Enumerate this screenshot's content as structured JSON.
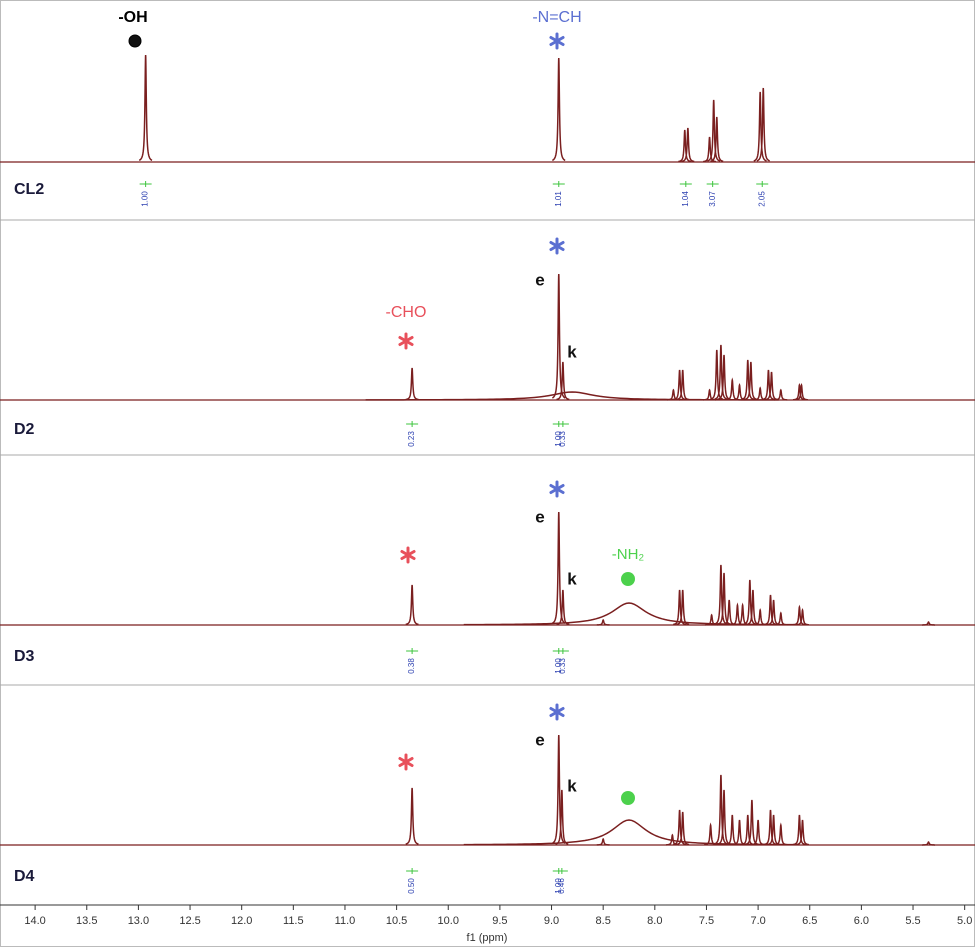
{
  "chart_data": {
    "type": "nmr",
    "x_label": "f1 (ppm)",
    "xlim": [
      14.34,
      4.9
    ],
    "xticks": [
      {
        "value": 14,
        "label": "14.0"
      },
      {
        "value": 13.5,
        "label": "13.5"
      },
      {
        "value": 13,
        "label": "13.0"
      },
      {
        "value": 12.5,
        "label": "12.5"
      },
      {
        "value": 12,
        "label": "12.0"
      },
      {
        "value": 11.5,
        "label": "11.5"
      },
      {
        "value": 11,
        "label": "11.0"
      },
      {
        "value": 10.5,
        "label": "10.5"
      },
      {
        "value": 10,
        "label": "10.0"
      },
      9.5,
      {
        "value": 9,
        "label": "9.0"
      },
      8.5,
      {
        "value": 8,
        "label": "8.0"
      },
      7.5,
      {
        "value": 7,
        "label": "7.0"
      },
      6.5,
      {
        "value": 6,
        "label": "6.0"
      },
      5.5,
      {
        "value": 5,
        "label": "5.0"
      }
    ],
    "ylim": [
      0,
      130
    ],
    "line_color": "#7a1f1f",
    "series": [
      {
        "name": "CL2",
        "x": [
          12.93,
          8.93,
          7.71,
          7.68,
          7.47,
          7.43,
          7.4,
          6.98,
          6.95
        ],
        "values": [
          107,
          104,
          32,
          34,
          25,
          62,
          45,
          70,
          74
        ],
        "widths": [
          0.006,
          0.006,
          0.006,
          0.006,
          0.006,
          0.006,
          0.006,
          0.006,
          0.006
        ],
        "integrals": {
          "x": [
            12.93,
            8.93,
            7.7,
            7.44,
            6.96
          ],
          "values": [
            1,
            1.01,
            1.04,
            3.07,
            2.05
          ],
          "value_labels": [
            "1.00",
            "1.01",
            "1.04",
            "3.07",
            "2.05"
          ]
        },
        "annotations": [
          "-OH",
          "-N=CH"
        ]
      },
      {
        "name": "D2",
        "x": [
          10.35,
          8.93,
          8.89,
          8.8,
          7.82,
          7.76,
          7.73,
          7.47,
          7.4,
          7.36,
          7.33,
          7.25,
          7.18,
          7.1,
          7.07,
          6.98,
          6.9,
          6.87,
          6.78,
          6.6,
          6.58
        ],
        "values": [
          32,
          126,
          38,
          8,
          10,
          30,
          30,
          10,
          50,
          55,
          45,
          20,
          15,
          40,
          38,
          12,
          30,
          28,
          10,
          15,
          15
        ],
        "widths": [
          0.006,
          0.006,
          0.006,
          0.25,
          0.006,
          0.006,
          0.006,
          0.006,
          0.006,
          0.006,
          0.006,
          0.006,
          0.006,
          0.006,
          0.006,
          0.006,
          0.006,
          0.006,
          0.006,
          0.006,
          0.006
        ],
        "integrals": {
          "x": [
            10.35,
            8.93,
            8.89
          ],
          "values": [
            0.23,
            1,
            0.33
          ],
          "value_labels": [
            "0.23",
            "1.00",
            "0.33"
          ]
        },
        "annotations": [
          "-CHO",
          "e",
          "k"
        ]
      },
      {
        "name": "D3",
        "x": [
          10.35,
          8.93,
          8.89,
          8.5,
          8.25,
          7.76,
          7.73,
          7.45,
          7.36,
          7.33,
          7.28,
          7.2,
          7.15,
          7.08,
          7.05,
          6.98,
          6.88,
          6.85,
          6.78,
          6.6,
          6.57,
          5.35
        ],
        "values": [
          40,
          113,
          35,
          5,
          22,
          35,
          35,
          10,
          60,
          52,
          25,
          20,
          20,
          45,
          35,
          15,
          30,
          25,
          12,
          18,
          15,
          3
        ],
        "widths": [
          0.006,
          0.006,
          0.006,
          0.006,
          0.2,
          0.006,
          0.006,
          0.006,
          0.006,
          0.006,
          0.006,
          0.006,
          0.006,
          0.006,
          0.006,
          0.006,
          0.006,
          0.006,
          0.006,
          0.006,
          0.006,
          0.006
        ],
        "integrals": {
          "x": [
            10.35,
            8.93,
            8.89
          ],
          "values": [
            0.38,
            1,
            0.33
          ],
          "value_labels": [
            "0.38",
            "1.00",
            "0.33"
          ]
        },
        "annotations": [
          "e",
          "k",
          "-NH₂"
        ]
      },
      {
        "name": "D4",
        "x": [
          10.35,
          8.93,
          8.9,
          8.5,
          8.25,
          7.83,
          7.76,
          7.73,
          7.46,
          7.36,
          7.33,
          7.25,
          7.18,
          7.1,
          7.06,
          7.0,
          6.88,
          6.85,
          6.78,
          6.6,
          6.57,
          5.35
        ],
        "values": [
          57,
          110,
          55,
          6,
          25,
          10,
          35,
          33,
          20,
          70,
          55,
          30,
          25,
          30,
          45,
          25,
          35,
          30,
          20,
          30,
          25,
          3
        ],
        "widths": [
          0.006,
          0.006,
          0.006,
          0.006,
          0.2,
          0.006,
          0.006,
          0.006,
          0.006,
          0.006,
          0.006,
          0.006,
          0.006,
          0.006,
          0.006,
          0.006,
          0.006,
          0.006,
          0.006,
          0.006,
          0.006,
          0.006
        ],
        "integrals": {
          "x": [
            10.35,
            8.93,
            8.9
          ],
          "values": [
            0.5,
            1,
            0.46
          ],
          "value_labels": [
            "0.50",
            "1.00",
            "0.46"
          ]
        },
        "annotations": [
          "e",
          "k"
        ]
      }
    ]
  }
}
